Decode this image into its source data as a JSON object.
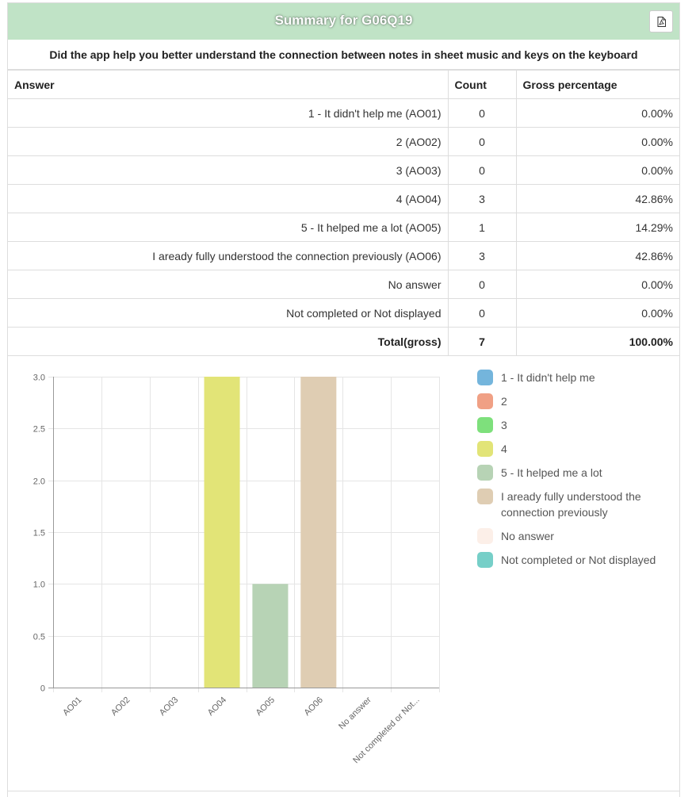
{
  "header": {
    "title": "Summary for G06Q19",
    "pdf_icon": "file-pdf-icon"
  },
  "question": "Did the app help you better understand the connection between notes in sheet music and keys on the keyboard",
  "table": {
    "columns": [
      "Answer",
      "Count",
      "Gross percentage"
    ],
    "rows": [
      {
        "answer": "1 - It didn't help me (AO01)",
        "count": "0",
        "percentage": "0.00%"
      },
      {
        "answer": "2 (AO02)",
        "count": "0",
        "percentage": "0.00%"
      },
      {
        "answer": "3 (AO03)",
        "count": "0",
        "percentage": "0.00%"
      },
      {
        "answer": "4 (AO04)",
        "count": "3",
        "percentage": "42.86%"
      },
      {
        "answer": "5 - It helped me a lot (AO05)",
        "count": "1",
        "percentage": "14.29%"
      },
      {
        "answer": "I aready fully understood the connection previously (AO06)",
        "count": "3",
        "percentage": "42.86%"
      },
      {
        "answer": "No answer",
        "count": "0",
        "percentage": "0.00%"
      },
      {
        "answer": "Not completed or Not displayed",
        "count": "0",
        "percentage": "0.00%"
      }
    ],
    "total": {
      "label": "Total(gross)",
      "count": "7",
      "percentage": "100.00%"
    }
  },
  "chart_data": {
    "type": "bar",
    "categories": [
      "AO01",
      "AO02",
      "AO03",
      "AO04",
      "AO05",
      "AO06",
      "No answer",
      "Not completed or Not..."
    ],
    "values": [
      0,
      0,
      0,
      3,
      1,
      3,
      0,
      0
    ],
    "colors": [
      "#74b5dc",
      "#f0a085",
      "#7ee07c",
      "#e2e477",
      "#b7d3b5",
      "#dfcdb3",
      "#fcefe8",
      "#76cfc8"
    ],
    "ylim": [
      0,
      3
    ],
    "yticks": [
      "0",
      "0.5",
      "1.0",
      "1.5",
      "2.0",
      "2.5",
      "3.0"
    ],
    "grid": true,
    "legend_position": "right",
    "legend": [
      "1 - It didn't help me",
      "2",
      "3",
      "4",
      "5 - It helped me a lot",
      "I aready fully understood the connection previously",
      "No answer",
      "Not completed or Not displayed"
    ]
  }
}
